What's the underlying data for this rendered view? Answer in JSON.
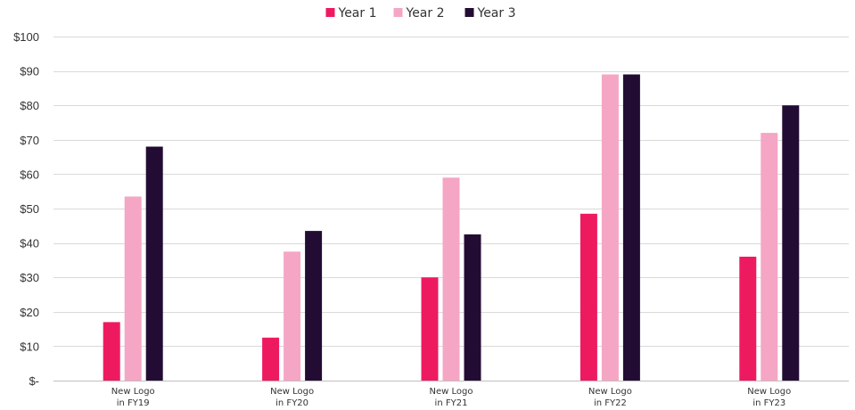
{
  "chart_data": {
    "type": "bar",
    "title": "",
    "xlabel": "",
    "ylabel": "",
    "categories": [
      [
        "New Logo",
        "in FY19"
      ],
      [
        "New Logo",
        "in FY20"
      ],
      [
        "New Logo",
        "in FY21"
      ],
      [
        "New Logo",
        "in FY22"
      ],
      [
        "New Logo",
        "in FY23"
      ]
    ],
    "series": [
      {
        "name": "Year 1",
        "color": "#ee1a60",
        "values": [
          17,
          12.5,
          30,
          48.5,
          36
        ]
      },
      {
        "name": "Year 2",
        "color": "#f5a6c4",
        "values": [
          53.5,
          37.5,
          59,
          89,
          72
        ]
      },
      {
        "name": "Year 3",
        "color": "#230c33",
        "values": [
          68,
          43.5,
          42.5,
          89,
          80
        ]
      }
    ],
    "ylim": [
      0,
      100
    ],
    "yticks": [
      0,
      10,
      20,
      30,
      40,
      50,
      60,
      70,
      80,
      90,
      100
    ],
    "ytick_labels": [
      "$-",
      "$10",
      "$20",
      "$30",
      "$40",
      "$50",
      "$60",
      "$70",
      "$80",
      "$90",
      "$100"
    ],
    "grid": true,
    "legend_position": "top-center",
    "gridline_color": "#d9d9d9"
  }
}
